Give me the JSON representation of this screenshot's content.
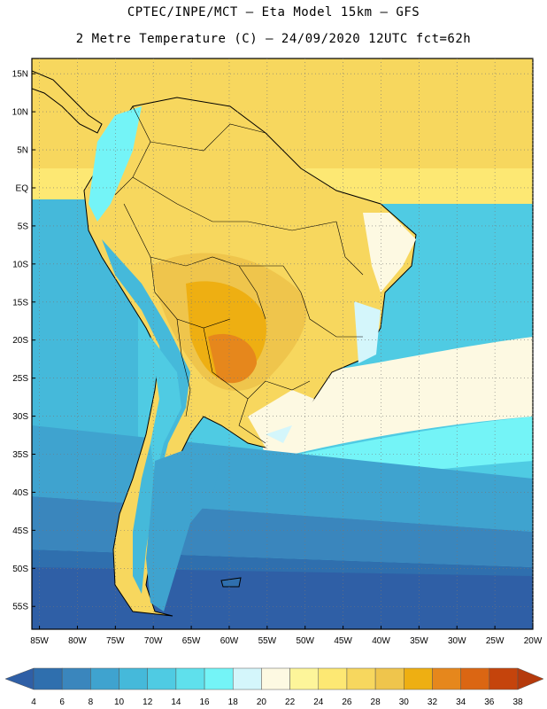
{
  "header": {
    "line1": "CPTEC/INPE/MCT –  Eta Model 15km – GFS",
    "line2": "2 Metre Temperature (C) – 24/09/2020 12UTC fct=62h"
  },
  "map": {
    "lat_labels": [
      "15N",
      "10N",
      "5N",
      "EQ",
      "5S",
      "10S",
      "15S",
      "20S",
      "25S",
      "30S",
      "35S",
      "40S",
      "45S",
      "50S",
      "55S"
    ],
    "lon_labels": [
      "85W",
      "80W",
      "75W",
      "70W",
      "65W",
      "60W",
      "55W",
      "50W",
      "45W",
      "40W",
      "35W",
      "30W",
      "25W",
      "20W"
    ],
    "lat_range": [
      17,
      -58
    ],
    "lon_range": [
      -86,
      -20
    ],
    "grid": "dotted"
  },
  "colorbar": {
    "labels": [
      "4",
      "6",
      "8",
      "10",
      "12",
      "14",
      "16",
      "18",
      "20",
      "22",
      "24",
      "26",
      "28",
      "30",
      "32",
      "34",
      "36",
      "38"
    ],
    "colors": [
      "#2f5fa6",
      "#2f6fae",
      "#3a86bd",
      "#3fa3cf",
      "#45b9da",
      "#4fcbe3",
      "#5fe0ec",
      "#74f4f7",
      "#d4f6fb",
      "#fdf9e2",
      "#fdf59a",
      "#fde873",
      "#f7d75e",
      "#efc54c",
      "#eeaf12",
      "#e6871c",
      "#db6613",
      "#c5440c",
      "#b53a0c"
    ]
  }
}
